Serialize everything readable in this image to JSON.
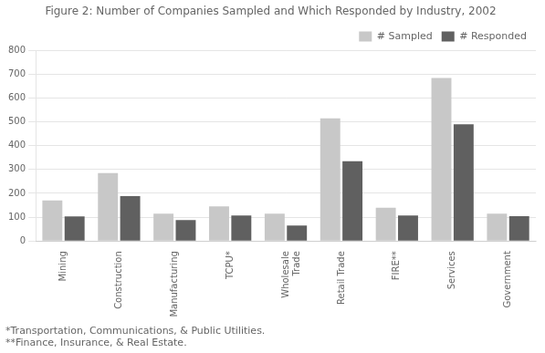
{
  "chart_data": {
    "type": "bar",
    "title": "Figure 2: Number of Companies Sampled and Which Responded by Industry, 2002",
    "categories": [
      "Mining",
      "Construction",
      "Manufacturing",
      "TCPU*",
      "Wholesale\nTrade",
      "Retail Trade",
      "FIRE**",
      "Services",
      "Government"
    ],
    "series": [
      {
        "name": "# Sampled",
        "color": "#c8c8c8",
        "values": [
          170,
          285,
          115,
          145,
          115,
          515,
          140,
          685,
          115
        ]
      },
      {
        "name": "# Responded",
        "color": "#606060",
        "values": [
          103,
          188,
          88,
          107,
          65,
          335,
          107,
          490,
          104
        ]
      }
    ],
    "ylim": [
      0,
      800
    ],
    "yticks": [
      0,
      100,
      200,
      300,
      400,
      500,
      600,
      700,
      800
    ],
    "grid": true,
    "legend": "upper right",
    "annotations": [
      "*Transportation, Communications, & Public Utilities.",
      "**Finance, Insurance, & Real Estate."
    ]
  }
}
